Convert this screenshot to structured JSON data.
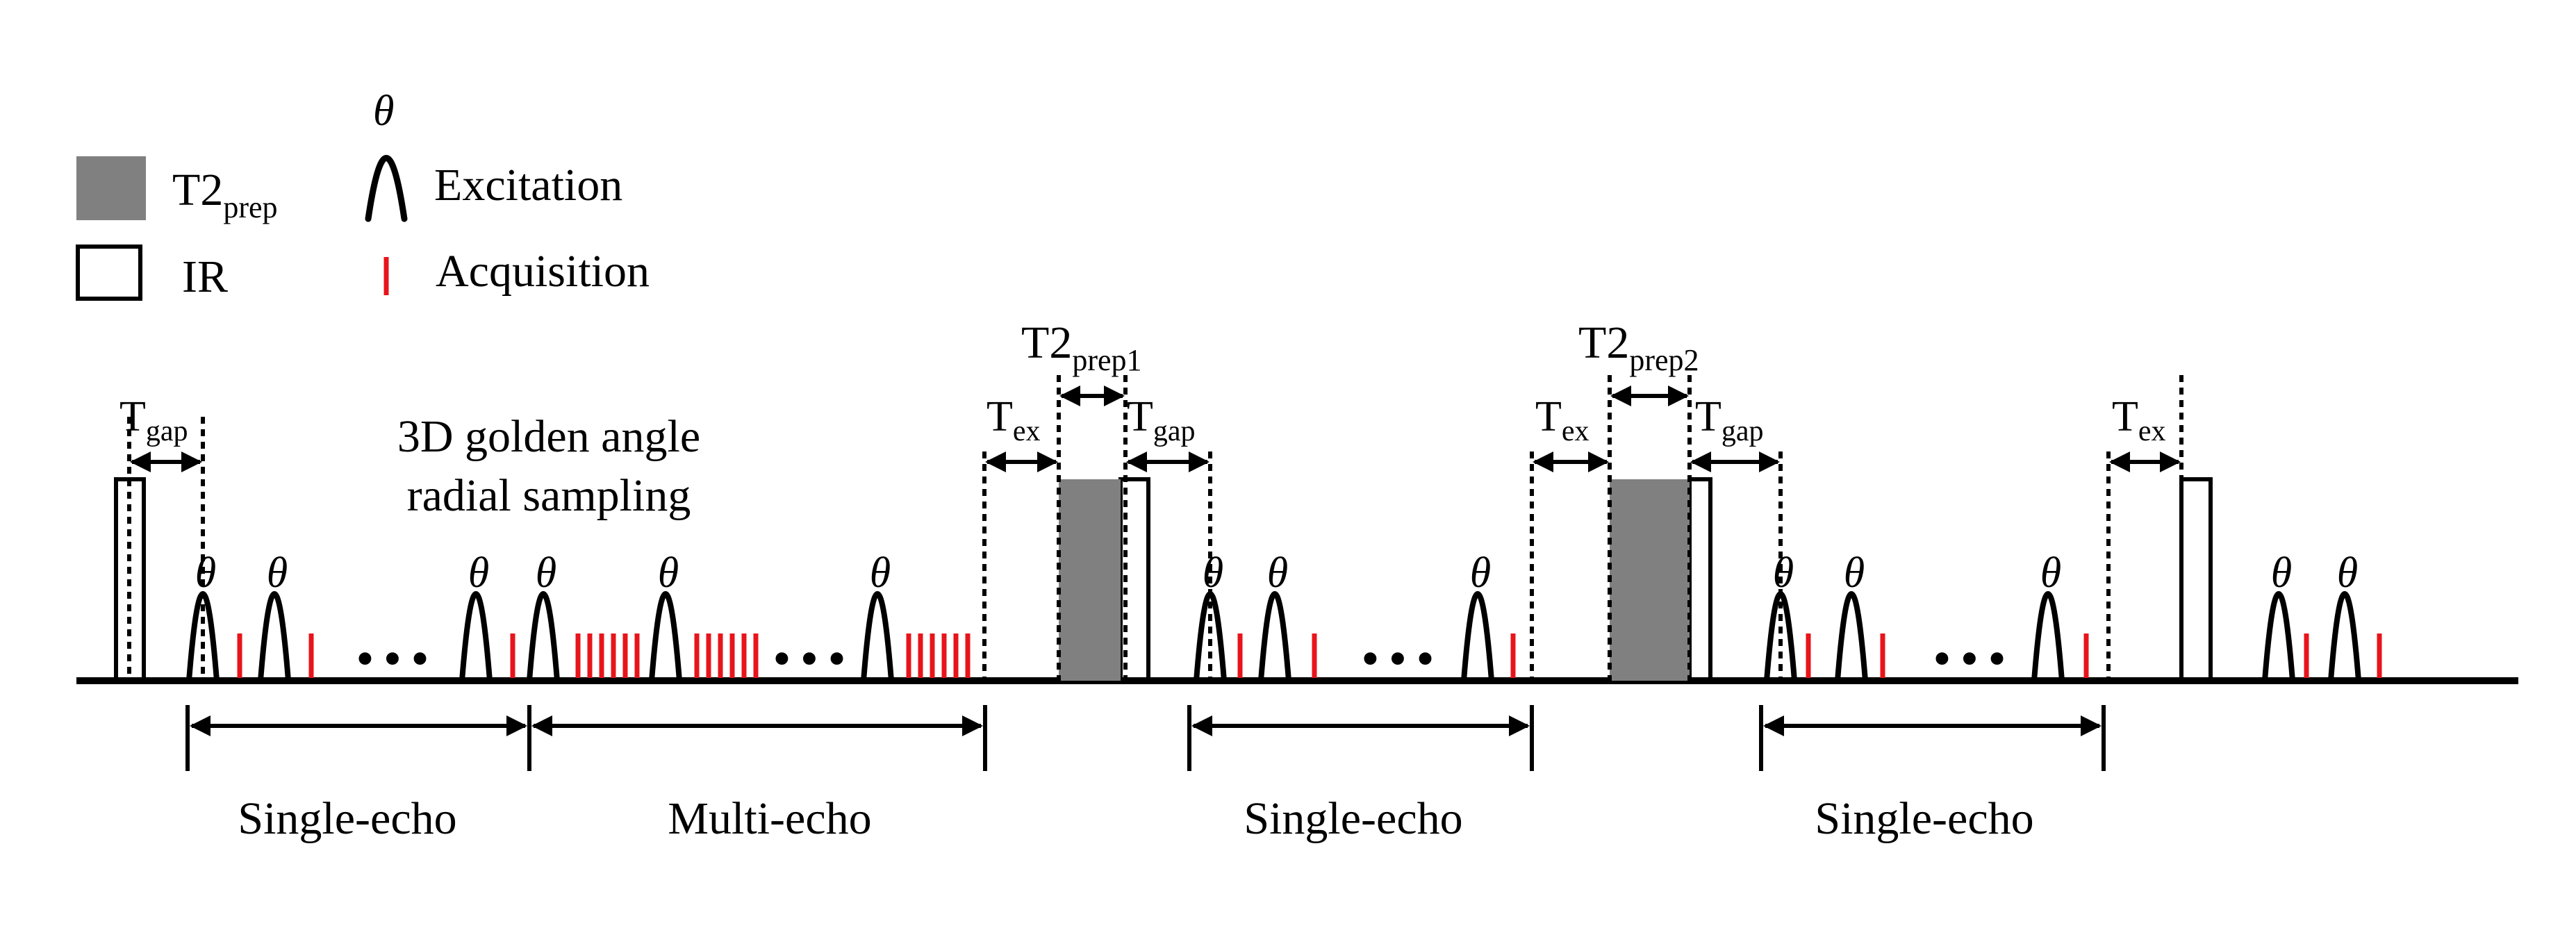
{
  "legend": {
    "t2prep": {
      "main": "T2",
      "sub": "prep"
    },
    "ir": "IR",
    "excitation_symbol": "θ",
    "excitation": "Excitation",
    "acquisition": "Acquisition"
  },
  "colors": {
    "t2prep_fill": "#808080",
    "acquisition": "#e8141b",
    "line": "#000000"
  },
  "labels": {
    "sampling_line1": "3D golden angle",
    "sampling_line2": "radial sampling",
    "t2prep1": {
      "main": "T2",
      "sub": "prep1"
    },
    "t2prep2": {
      "main": "T2",
      "sub": "prep2"
    },
    "tgap": {
      "main": "T",
      "sub": "gap"
    },
    "tex": {
      "main": "T",
      "sub": "ex"
    },
    "theta": "θ",
    "ellipsis": "• • •"
  },
  "segments": [
    {
      "id": "single-echo-1",
      "label": "Single-echo"
    },
    {
      "id": "multi-echo",
      "label": "Multi-echo"
    },
    {
      "id": "single-echo-2",
      "label": "Single-echo"
    },
    {
      "id": "single-echo-3",
      "label": "Single-echo"
    }
  ]
}
